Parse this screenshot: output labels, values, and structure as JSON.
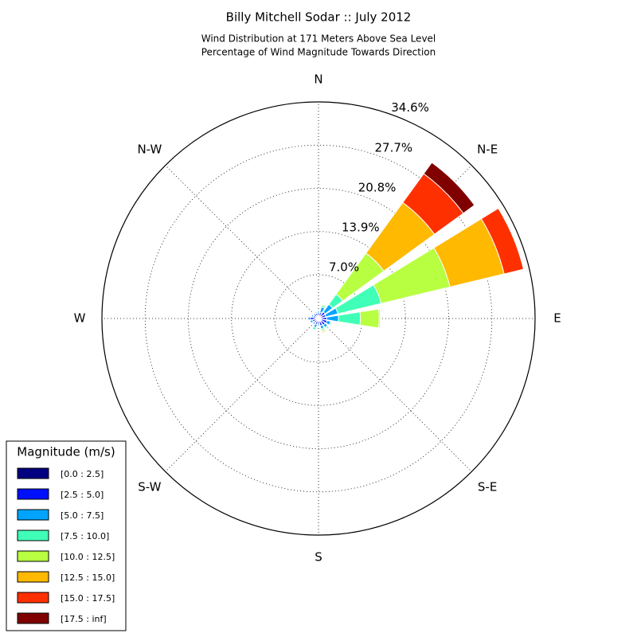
{
  "chart_data": {
    "type": "windrose",
    "title": "Billy Mitchell Sodar :: July 2012",
    "subtitle": [
      "Wind Distribution at 171 Meters Above Sea Level",
      "Percentage of Wind Magnitude Towards Direction"
    ],
    "categories": [
      "N",
      null,
      "N-E",
      null,
      "E",
      null,
      "S-E",
      null,
      "S",
      null,
      "S-W",
      null,
      "W",
      null,
      "N-W",
      null
    ],
    "rlim": [
      0,
      34.6
    ],
    "rticks": [
      {
        "value": 7.0,
        "label": "7.0%"
      },
      {
        "value": 13.9,
        "label": "13.9%"
      },
      {
        "value": 20.8,
        "label": "20.8%"
      },
      {
        "value": 27.7,
        "label": "27.7%"
      },
      {
        "value": 34.6,
        "label": "34.6%"
      }
    ],
    "grid": true,
    "legend_title": "Magnitude (m/s)",
    "legend_position": "lower left",
    "series": [
      {
        "name": "[0.0 : 2.5]",
        "color": "#000080",
        "values": [
          0.4,
          0.4,
          0.3,
          0.3,
          0.4,
          0.5,
          0.5,
          0.5,
          0.4,
          0.4,
          0.4,
          0.4,
          0.5,
          0.4,
          0.4,
          0.4
        ]
      },
      {
        "name": "[2.5 : 5.0]",
        "color": "#0010ff",
        "values": [
          0.5,
          0.6,
          1.0,
          0.9,
          0.9,
          0.9,
          0.8,
          0.7,
          0.5,
          0.6,
          0.5,
          0.6,
          0.8,
          0.5,
          0.5,
          0.5
        ]
      },
      {
        "name": "[5.0 : 7.5]",
        "color": "#00a4ff",
        "values": [
          0.3,
          0.9,
          1.5,
          2.0,
          1.9,
          0.6,
          0.5,
          0.5,
          0.3,
          0.5,
          0.3,
          0.4,
          0.4,
          0.3,
          0.2,
          0.2
        ]
      },
      {
        "name": "[7.5 : 10.0]",
        "color": "#40ffb7",
        "values": [
          0,
          0.3,
          2.0,
          7.1,
          3.5,
          0.2,
          0.2,
          0.3,
          0,
          0.4,
          0,
          0,
          0,
          0,
          0,
          0
        ]
      },
      {
        "name": "[10.0 : 12.5]",
        "color": "#b7ff40",
        "values": [
          0,
          0.2,
          8.1,
          11.3,
          3.0,
          0,
          0,
          0.2,
          0,
          0.1,
          0,
          0,
          0,
          0,
          0,
          0
        ]
      },
      {
        "name": "[12.5 : 15.0]",
        "color": "#ffb900",
        "values": [
          0,
          0,
          10.0,
          8.9,
          0.2,
          0,
          0,
          0.2,
          0,
          0,
          0,
          0,
          0,
          0,
          0,
          0
        ]
      },
      {
        "name": "[15.0 : 17.5]",
        "color": "#ff3000",
        "values": [
          0,
          0,
          5.7,
          3.2,
          0,
          0,
          0,
          0,
          0,
          0,
          0,
          0,
          0,
          0,
          0,
          0
        ]
      },
      {
        "name": "[17.5 : inf]",
        "color": "#800000",
        "values": [
          0,
          0,
          2.2,
          0,
          0,
          0,
          0,
          0,
          0,
          0,
          0,
          0,
          0,
          0,
          0,
          0
        ]
      }
    ]
  }
}
